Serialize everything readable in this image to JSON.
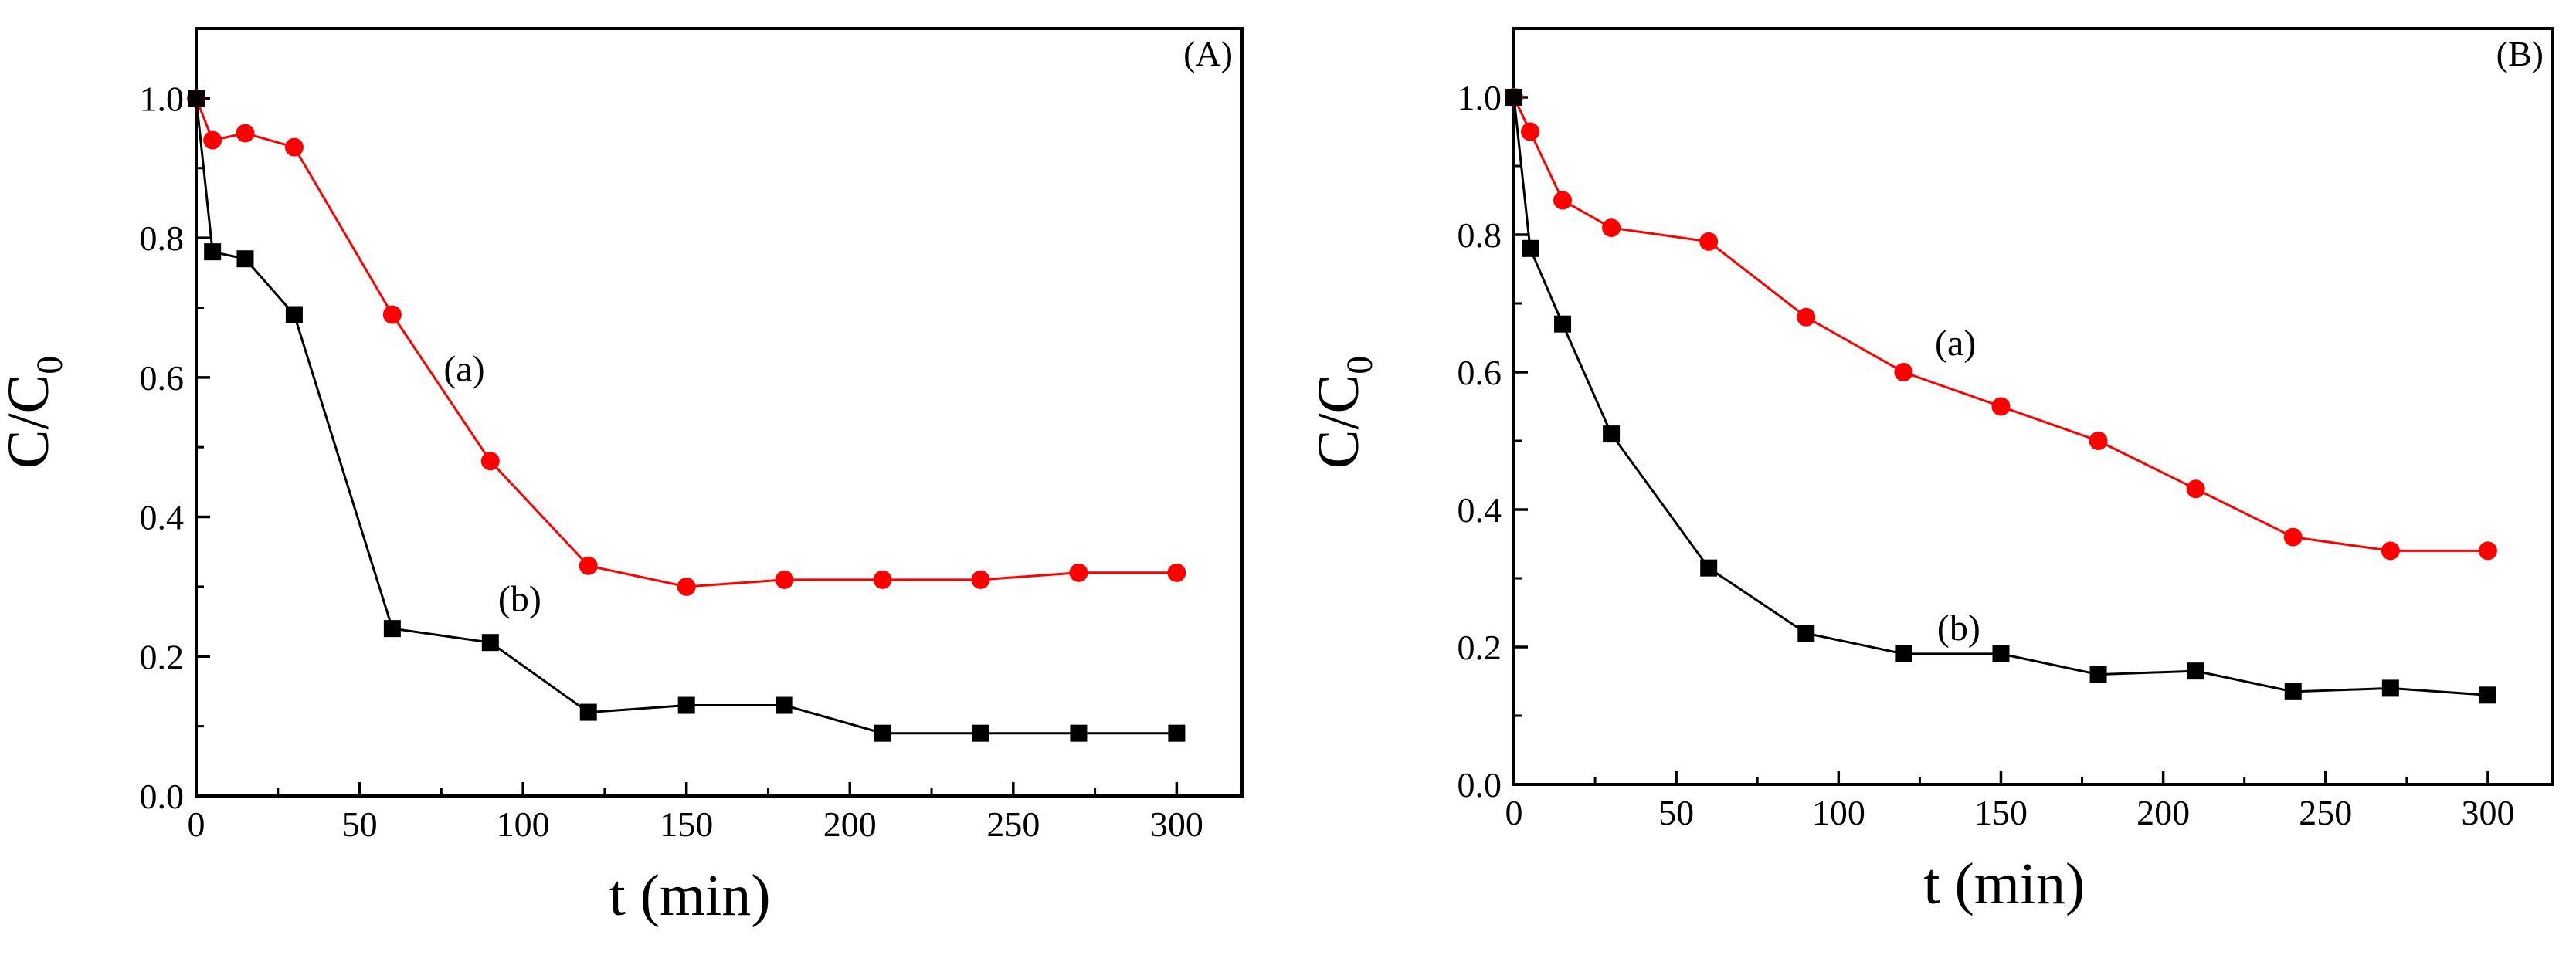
{
  "chart_data": [
    {
      "type": "line",
      "panel_label": "(A)",
      "xlabel": "t (min)",
      "ylabel_main": "C/C",
      "ylabel_sub": "0",
      "xlim": [
        0,
        320
      ],
      "ylim": [
        0,
        1.1
      ],
      "xticks": [
        0,
        50,
        100,
        150,
        200,
        250,
        300
      ],
      "xtick_labels": [
        "0",
        "50",
        "100",
        "150",
        "200",
        "250",
        "300"
      ],
      "yticks": [
        0.0,
        0.2,
        0.4,
        0.6,
        0.8,
        1.0
      ],
      "ytick_labels": [
        "0.0",
        "0.2",
        "0.4",
        "0.6",
        "0.8",
        "1.0"
      ],
      "series": [
        {
          "name": "(a)",
          "color": "#ff0000",
          "marker": "circle",
          "x": [
            0,
            5,
            15,
            30,
            60,
            90,
            120,
            150,
            180,
            210,
            240,
            270,
            300
          ],
          "y": [
            1.0,
            0.94,
            0.95,
            0.93,
            0.69,
            0.48,
            0.33,
            0.3,
            0.31,
            0.31,
            0.31,
            0.32,
            0.32
          ],
          "label_at": [
            82,
            0.595
          ]
        },
        {
          "name": "(b)",
          "color": "#000000",
          "marker": "square",
          "x": [
            0,
            5,
            15,
            30,
            60,
            90,
            120,
            150,
            180,
            210,
            240,
            270,
            300
          ],
          "y": [
            1.0,
            0.78,
            0.77,
            0.69,
            0.24,
            0.22,
            0.12,
            0.13,
            0.13,
            0.09,
            0.09,
            0.09,
            0.09
          ],
          "label_at": [
            99,
            0.265
          ]
        }
      ]
    },
    {
      "type": "line",
      "panel_label": "(B)",
      "xlabel": "t (min)",
      "ylabel_main": "C/C",
      "ylabel_sub": "0",
      "xlim": [
        0,
        320
      ],
      "ylim": [
        0,
        1.1
      ],
      "xticks": [
        0,
        50,
        100,
        150,
        200,
        250,
        300
      ],
      "xtick_labels": [
        "0",
        "50",
        "100",
        "150",
        "200",
        "250",
        "300"
      ],
      "yticks": [
        0.0,
        0.2,
        0.4,
        0.6,
        0.8,
        1.0
      ],
      "ytick_labels": [
        "0.0",
        "0.2",
        "0.4",
        "0.6",
        "0.8",
        "1.0"
      ],
      "series": [
        {
          "name": "(a)",
          "color": "#ff0000",
          "marker": "circle",
          "x": [
            0,
            5,
            15,
            30,
            60,
            90,
            120,
            150,
            180,
            210,
            240,
            270,
            300
          ],
          "y": [
            1.0,
            0.95,
            0.85,
            0.81,
            0.79,
            0.68,
            0.6,
            0.55,
            0.5,
            0.43,
            0.36,
            0.34,
            0.34
          ],
          "label_at": [
            136,
            0.625
          ]
        },
        {
          "name": "(b)",
          "color": "#000000",
          "marker": "square",
          "x": [
            0,
            5,
            15,
            30,
            60,
            90,
            120,
            150,
            180,
            210,
            240,
            270,
            300
          ],
          "y": [
            1.0,
            0.78,
            0.67,
            0.51,
            0.315,
            0.22,
            0.19,
            0.19,
            0.16,
            0.165,
            0.135,
            0.14,
            0.13
          ],
          "label_at": [
            137,
            0.21
          ]
        }
      ]
    }
  ]
}
